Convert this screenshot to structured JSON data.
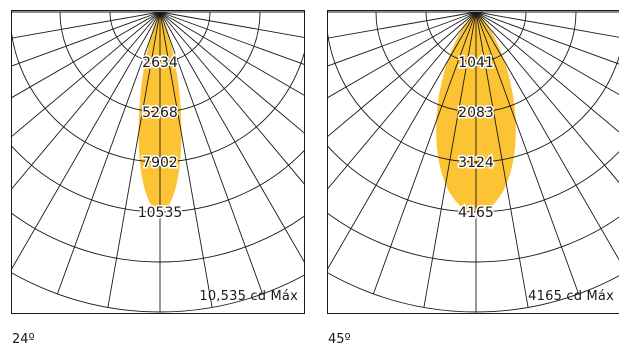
{
  "chart_data": [
    {
      "type": "polar",
      "beam_angle_label": "24º",
      "max_label": "10,535 cd Máx",
      "max_value": 10535,
      "rings": [
        2634,
        5268,
        7902,
        10535
      ],
      "ring_labels": [
        "2634",
        "5268",
        "7902",
        "10535"
      ],
      "beam_half_angle_deg": 12,
      "fill_color": "#fcc434",
      "grid_color": "#1a1a1a"
    },
    {
      "type": "polar",
      "beam_angle_label": "45º",
      "max_label": "4165 cd Máx",
      "max_value": 4165,
      "rings": [
        1041,
        2083,
        3124,
        4165
      ],
      "ring_labels": [
        "1041",
        "2083",
        "3124",
        "4165"
      ],
      "beam_half_angle_deg": 22.5,
      "fill_color": "#fcc434",
      "grid_color": "#1a1a1a"
    }
  ]
}
